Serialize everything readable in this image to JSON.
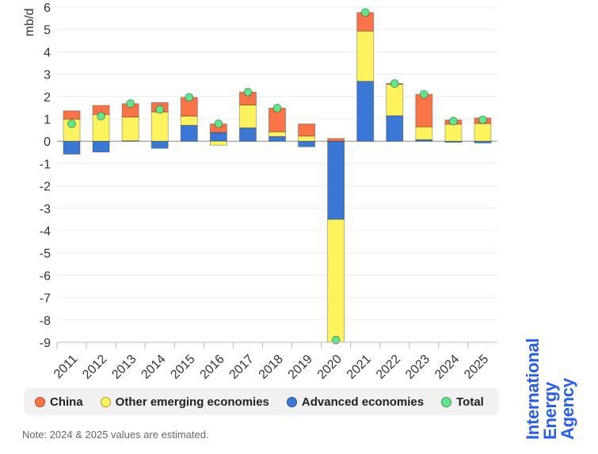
{
  "chart_data": {
    "type": "bar",
    "stacked": true,
    "ylabel": "mb/d",
    "ylim": [
      -9,
      6
    ],
    "yticks": [
      6,
      5,
      4,
      3,
      2,
      1,
      0,
      -1,
      -2,
      -3,
      -4,
      -5,
      -6,
      -7,
      -8,
      -9
    ],
    "grid": true,
    "legend_position": "bottom",
    "categories": [
      "2011",
      "2012",
      "2013",
      "2014",
      "2015",
      "2016",
      "2017",
      "2018",
      "2019",
      "2020",
      "2021",
      "2022",
      "2023",
      "2024",
      "2025"
    ],
    "series": [
      {
        "name": "China",
        "color": "#fb7448",
        "values": [
          0.37,
          0.4,
          0.6,
          0.42,
          0.84,
          0.38,
          0.58,
          1.06,
          0.54,
          0.12,
          0.83,
          0.03,
          1.46,
          0.19,
          0.25
        ]
      },
      {
        "name": "Other emerging economies",
        "color": "#fdf35c",
        "values": [
          0.99,
          1.2,
          1.06,
          1.31,
          0.41,
          -0.18,
          1.02,
          0.21,
          0.23,
          -5.78,
          2.25,
          1.41,
          0.57,
          0.76,
          0.79
        ]
      },
      {
        "name": "Advanced economies",
        "color": "#3b78d6",
        "values": [
          -0.58,
          -0.49,
          0.02,
          -0.32,
          0.71,
          0.39,
          0.6,
          0.21,
          -0.25,
          -3.5,
          2.68,
          1.14,
          0.07,
          -0.05,
          -0.08
        ]
      }
    ],
    "total": {
      "name": "Total",
      "color": "#5fe58c",
      "values": [
        0.78,
        1.12,
        1.68,
        1.42,
        1.96,
        0.78,
        2.2,
        1.48,
        null,
        -8.9,
        5.76,
        2.58,
        2.1,
        0.9,
        0.96
      ]
    }
  },
  "note": "Note: 2024 & 2025 values are estimated.",
  "logo": {
    "line1": "International",
    "line2": "Energy Agency"
  }
}
